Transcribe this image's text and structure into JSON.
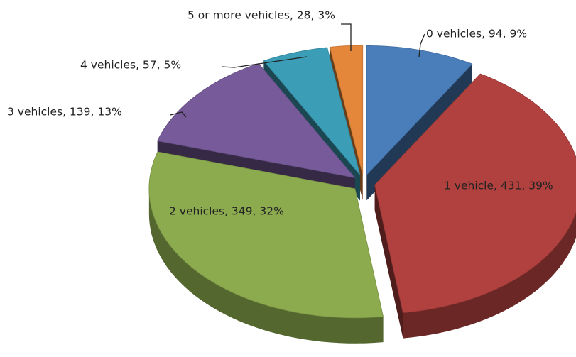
{
  "chart_data": {
    "type": "pie3d",
    "categories": [
      "0 vehicles",
      "1 vehicle",
      "2 vehicles",
      "3 vehicles",
      "4 vehicles",
      "5 or more vehicles"
    ],
    "values": [
      94,
      431,
      349,
      139,
      57,
      28
    ],
    "data_labels": [
      "0 vehicles, 94, 9%",
      "1 vehicle, 431, 39%",
      "2 vehicles, 349, 32%",
      "3 vehicles, 139, 13%",
      "4 vehicles, 57, 5%",
      "5 or more vehicles, 28, 3%"
    ],
    "colors": [
      "#4a7ebb",
      "#b0413e",
      "#8cab4f",
      "#765a99",
      "#3b9db6",
      "#e4873a"
    ]
  }
}
